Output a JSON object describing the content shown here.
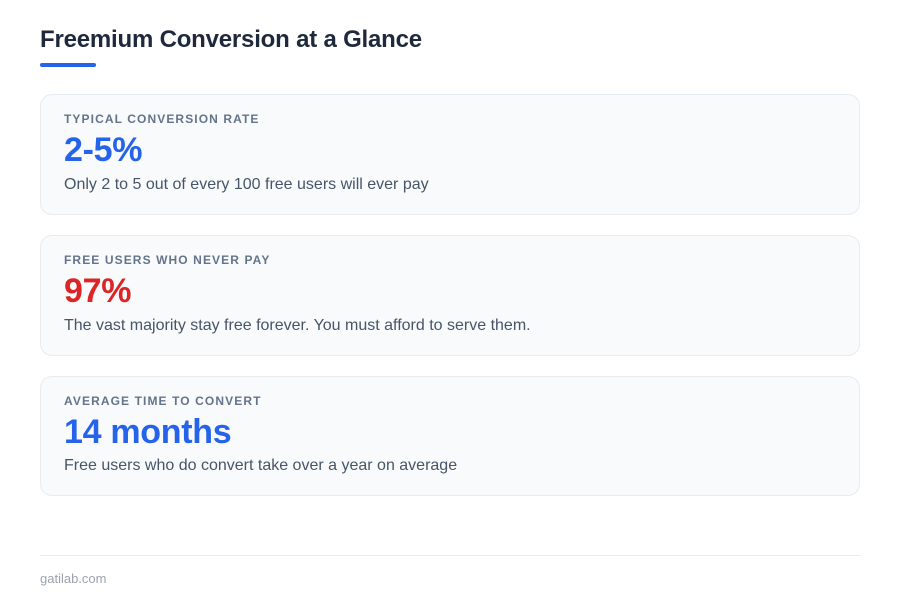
{
  "page": {
    "title": "Freemium Conversion at a Glance",
    "footer_text": "gatilab.com"
  },
  "colors": {
    "accent_blue": "#2563eb",
    "alert_red": "#dc2626",
    "title_dark": "#1e293b",
    "card_bg": "#f8fafc",
    "card_border": "#e7ebf2",
    "label_gray": "#64748b",
    "desc_gray": "#475569",
    "footer_gray": "#9ca3af"
  },
  "cards": [
    {
      "label": "TYPICAL CONVERSION RATE",
      "value": "2-5%",
      "value_color": "#2563eb",
      "description": "Only 2 to 5 out of every 100 free users will ever pay"
    },
    {
      "label": "FREE USERS WHO NEVER PAY",
      "value": "97%",
      "value_color": "#dc2626",
      "description": "The vast majority stay free forever. You must afford to serve them."
    },
    {
      "label": "AVERAGE TIME TO CONVERT",
      "value": "14 months",
      "value_color": "#2563eb",
      "description": "Free users who do convert take over a year on average"
    }
  ]
}
